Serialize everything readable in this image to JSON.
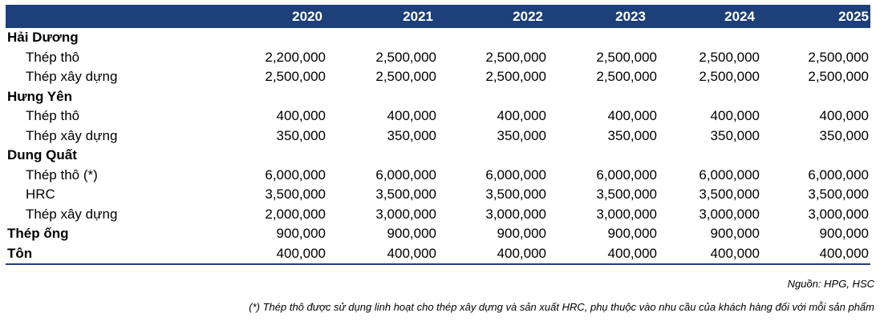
{
  "years": [
    "2020",
    "2021",
    "2022",
    "2023",
    "2024",
    "2025"
  ],
  "rows": [
    {
      "type": "group",
      "label": "Hải Dương",
      "values": []
    },
    {
      "type": "sub",
      "label": "Thép thô",
      "values": [
        "2,200,000",
        "2,500,000",
        "2,500,000",
        "2,500,000",
        "2,500,000",
        "2,500,000"
      ]
    },
    {
      "type": "sub",
      "label": "Thép xây dựng",
      "values": [
        "2,500,000",
        "2,500,000",
        "2,500,000",
        "2,500,000",
        "2,500,000",
        "2,500,000"
      ]
    },
    {
      "type": "group",
      "label": "Hưng Yên",
      "values": []
    },
    {
      "type": "sub",
      "label": "Thép thô",
      "values": [
        "400,000",
        "400,000",
        "400,000",
        "400,000",
        "400,000",
        "400,000"
      ]
    },
    {
      "type": "sub",
      "label": "Thép xây dựng",
      "values": [
        "350,000",
        "350,000",
        "350,000",
        "350,000",
        "350,000",
        "350,000"
      ]
    },
    {
      "type": "group",
      "label": "Dung Quất",
      "values": []
    },
    {
      "type": "sub",
      "label": "Thép thô (*)",
      "values": [
        "6,000,000",
        "6,000,000",
        "6,000,000",
        "6,000,000",
        "6,000,000",
        "6,000,000"
      ]
    },
    {
      "type": "sub",
      "label": "HRC",
      "values": [
        "3,500,000",
        "3,500,000",
        "3,500,000",
        "3,500,000",
        "3,500,000",
        "3,500,000"
      ]
    },
    {
      "type": "sub",
      "label": "Thép xây dựng",
      "values": [
        "2,000,000",
        "3,000,000",
        "3,000,000",
        "3,000,000",
        "3,000,000",
        "3,000,000"
      ]
    },
    {
      "type": "group",
      "label": "Thép ống",
      "values": [
        "900,000",
        "900,000",
        "900,000",
        "900,000",
        "900,000",
        "900,000"
      ]
    },
    {
      "type": "group",
      "label": "Tôn",
      "values": [
        "400,000",
        "400,000",
        "400,000",
        "400,000",
        "400,000",
        "400,000"
      ]
    }
  ],
  "source": "Nguồn: HPG, HSC",
  "footnote": "(*) Thép thô được sử dụng linh hoạt cho thép xây dựng và sản xuất HRC, phụ thuộc vào nhu cầu của khách hàng đối với mỗi sản phẩm",
  "colors": {
    "header_bg": "#1d3f7a",
    "header_text": "#ffffff"
  }
}
